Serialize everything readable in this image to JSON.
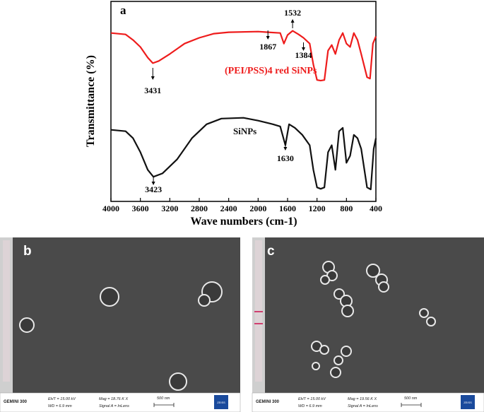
{
  "chart_data": {
    "type": "line",
    "panel_label": "a",
    "x_label": "Wave numbers (cm-1)",
    "y_label": "Transmittance (%)",
    "xlim": [
      4000,
      400
    ],
    "xticks": [
      4000,
      3600,
      3200,
      2800,
      2400,
      2000,
      1600,
      1200,
      800,
      400
    ],
    "ylim": [
      0,
      100
    ],
    "series": [
      {
        "name": "(PEI/PSS)4 red SiNPs",
        "color": "#ee1c1c",
        "x": [
          4000,
          3800,
          3700,
          3600,
          3500,
          3431,
          3350,
          3200,
          3000,
          2800,
          2600,
          2400,
          2000,
          1867,
          1700,
          1650,
          1600,
          1532,
          1450,
          1384,
          1300,
          1250,
          1200,
          1150,
          1100,
          1050,
          1000,
          950,
          900,
          850,
          800,
          750,
          700,
          650,
          600,
          520,
          480,
          440,
          400
        ],
        "values": [
          84.2,
          83.5,
          80.7,
          77.2,
          71.9,
          69.1,
          70.2,
          73.7,
          78.9,
          81.8,
          83.9,
          84.6,
          84.9,
          84.6,
          84.2,
          78.9,
          83.2,
          85.3,
          83.5,
          81.8,
          78.9,
          68.4,
          60.7,
          60.4,
          60.7,
          75.4,
          78.2,
          73.7,
          80.7,
          84.2,
          78.9,
          77.2,
          84.2,
          80.7,
          73.7,
          62.1,
          61.4,
          78.9,
          82.5
        ]
      },
      {
        "name": "SiNPs",
        "color": "#111111",
        "x": [
          4000,
          3800,
          3700,
          3600,
          3500,
          3423,
          3300,
          3100,
          2900,
          2700,
          2500,
          2200,
          2000,
          1800,
          1700,
          1630,
          1580,
          1500,
          1400,
          1300,
          1250,
          1200,
          1150,
          1100,
          1050,
          1000,
          950,
          900,
          850,
          800,
          750,
          700,
          650,
          600,
          520,
          470,
          430,
          400
        ],
        "values": [
          35.8,
          35.1,
          31.6,
          24.6,
          15.8,
          12.3,
          14.0,
          21.1,
          31.6,
          38.6,
          41.4,
          41.8,
          40.4,
          38.6,
          37.5,
          28.1,
          38.6,
          36.8,
          33.3,
          28.1,
          15.8,
          7.0,
          6.3,
          7.0,
          24.6,
          28.1,
          15.8,
          35.1,
          36.8,
          19.3,
          22.8,
          33.3,
          31.6,
          26.3,
          7.0,
          6.0,
          26.3,
          31.6
        ]
      }
    ],
    "annotations": [
      {
        "text": "3431",
        "x": 3431
      },
      {
        "text": "1867",
        "x": 1867
      },
      {
        "text": "1532",
        "x": 1532
      },
      {
        "text": "1384",
        "x": 1384
      },
      {
        "text": "3423",
        "x": 3423
      },
      {
        "text": "1630",
        "x": 1630
      }
    ]
  },
  "sem_panels": [
    {
      "label": "b",
      "instrument": "GEMINI 300",
      "eht": "EHT = 15.00 kV",
      "wd": "WD = 6.9 mm",
      "mag": "Mag = 18.76 K X",
      "signal": "Signal A = InLens",
      "scale": "500 nm",
      "logo": "ZEISS"
    },
    {
      "label": "c",
      "instrument": "GEMINI 300",
      "eht": "EHT = 15.00 kV",
      "wd": "WD = 6.9 mm",
      "mag": "Mag = 19.56 K X",
      "signal": "Signal A = InLens",
      "scale": "500 nm",
      "logo": "ZEISS"
    }
  ]
}
